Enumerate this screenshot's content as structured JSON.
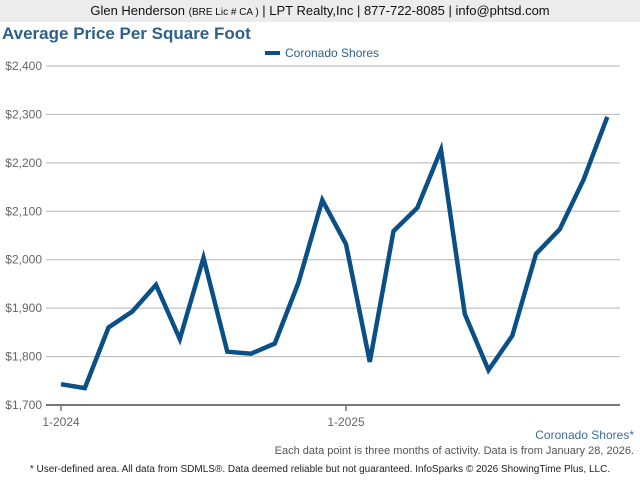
{
  "header": {
    "agent_name": "Glen Henderson",
    "license": "(BRE Lic # CA )",
    "rest": "| LPT Realty,Inc | 877-722-8085 | info@phtsd.com"
  },
  "title": "Average Price Per Square Foot",
  "legend": {
    "label": "Coronado Shores",
    "color": "#0a5086"
  },
  "area_label": "Coronado Shores*",
  "note": "Each data point is three months of activity. Data is from January 28, 2026.",
  "footer": "* User-defined area. All data from SDMLS®. Data deemed reliable but not guaranteed. InfoSparks © 2026 ShowingTime Plus, LLC.",
  "chart_data": {
    "type": "line",
    "title": "Average Price Per Square Foot",
    "xlabel": "",
    "ylabel": "",
    "ylim": [
      1700,
      2400
    ],
    "yticks": [
      "$1,700",
      "$1,800",
      "$1,900",
      "$2,000",
      "$2,100",
      "$2,200",
      "$2,300",
      "$2,400"
    ],
    "xticks": [
      "1-2024",
      "1-2025"
    ],
    "grid": true,
    "legend_position": "top",
    "x": [
      "1-2024",
      "2-2024",
      "3-2024",
      "4-2024",
      "5-2024",
      "6-2024",
      "7-2024",
      "8-2024",
      "9-2024",
      "10-2024",
      "11-2024",
      "12-2024",
      "1-2025",
      "2-2025",
      "3-2025",
      "4-2025",
      "5-2025",
      "6-2025",
      "7-2025",
      "8-2025",
      "9-2025",
      "10-2025",
      "11-2025",
      "12-2025"
    ],
    "series": [
      {
        "name": "Coronado Shores",
        "color": "#0a5086",
        "values": [
          1743,
          1735,
          1860,
          1893,
          1948,
          1836,
          2004,
          1810,
          1806,
          1827,
          1953,
          2123,
          2032,
          1789,
          2059,
          2107,
          2227,
          1888,
          1772,
          1843,
          2012,
          2063,
          2165,
          2295
        ]
      }
    ]
  }
}
